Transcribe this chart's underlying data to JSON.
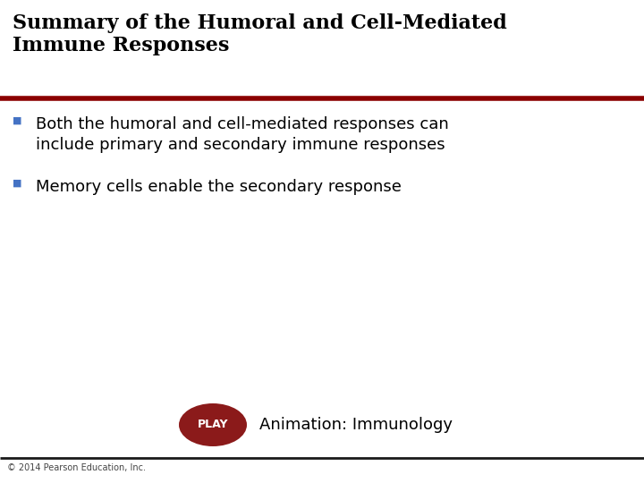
{
  "title_line1": "Summary of the Humoral and Cell-Mediated",
  "title_line2": "Immune Responses",
  "title_color": "#000000",
  "title_fontsize": 16,
  "separator_color": "#8B0000",
  "separator_thickness": 4,
  "bullet_color": "#4472C4",
  "bullet1_line1": "Both the humoral and cell-mediated responses can",
  "bullet1_line2": "include primary and secondary immune responses",
  "bullet2": "Memory cells enable the secondary response",
  "bullet_fontsize": 13,
  "play_button_color": "#8B1a1a",
  "play_text": "PLAY",
  "play_fontsize": 9,
  "animation_text": "Animation: Immunology",
  "animation_fontsize": 13,
  "footer_text": "© 2014 Pearson Education, Inc.",
  "footer_fontsize": 7,
  "footer_color": "#444444",
  "background_color": "#ffffff",
  "bottom_line_color": "#1a1a1a"
}
